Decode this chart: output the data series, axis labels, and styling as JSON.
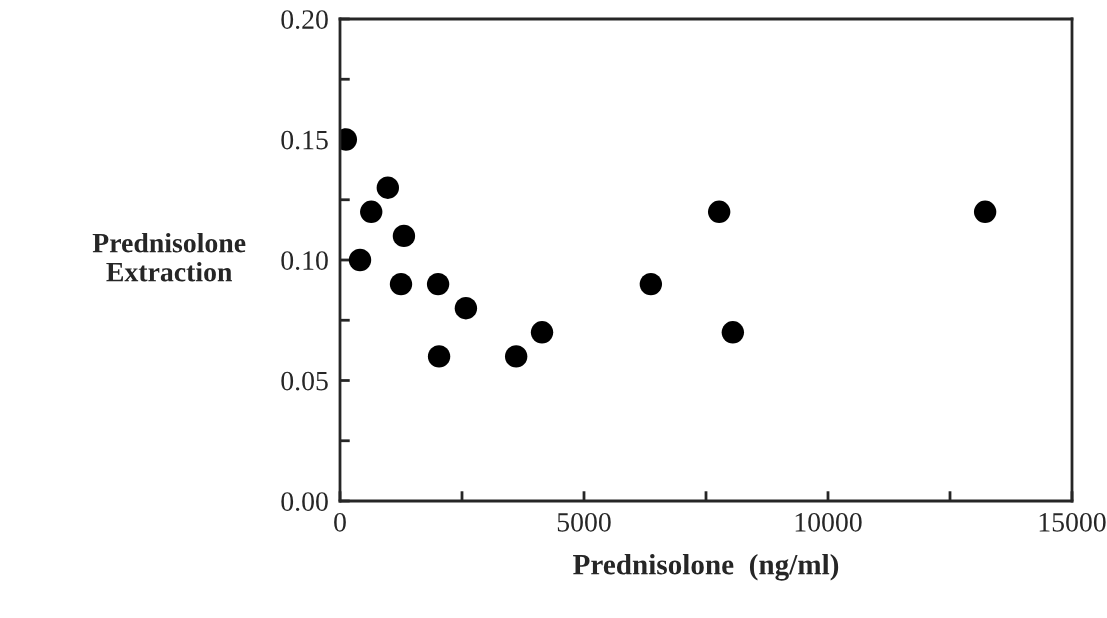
{
  "chart_data": {
    "type": "scatter",
    "xlabel": "Prednisolone  (ng/ml)",
    "ylabel": "Prednisolone\nExtraction",
    "x": [
      120,
      410,
      640,
      980,
      1250,
      1310,
      2010,
      2030,
      2580,
      3610,
      4140,
      6370,
      7770,
      8050,
      13220
    ],
    "series": [
      {
        "color": "#000000",
        "values": [
          0.15,
          0.1,
          0.12,
          0.13,
          0.09,
          0.11,
          0.09,
          0.06,
          0.08,
          0.06,
          0.07,
          0.09,
          0.12,
          0.07,
          0.12
        ]
      }
    ],
    "marker": "circle",
    "grid": false,
    "xlim": [
      0,
      15000
    ],
    "xticks": [
      0,
      {
        "value": 2500,
        "label": null
      },
      5000,
      {
        "value": 7500,
        "label": null
      },
      10000,
      {
        "value": 12500,
        "label": null
      },
      15000
    ],
    "ylim": [
      0,
      0.2
    ],
    "yticks": [
      {
        "value": 0,
        "label": "0.00"
      },
      {
        "value": 0.025,
        "label": null
      },
      {
        "value": 0.05,
        "label": "0.05"
      },
      {
        "value": 0.075,
        "label": null
      },
      {
        "value": 0.1,
        "label": "0.10"
      },
      {
        "value": 0.125,
        "label": null
      },
      {
        "value": 0.15,
        "label": "0.15"
      },
      {
        "value": 0.175,
        "label": null
      },
      {
        "value": 0.2,
        "label": "0.20"
      }
    ]
  }
}
